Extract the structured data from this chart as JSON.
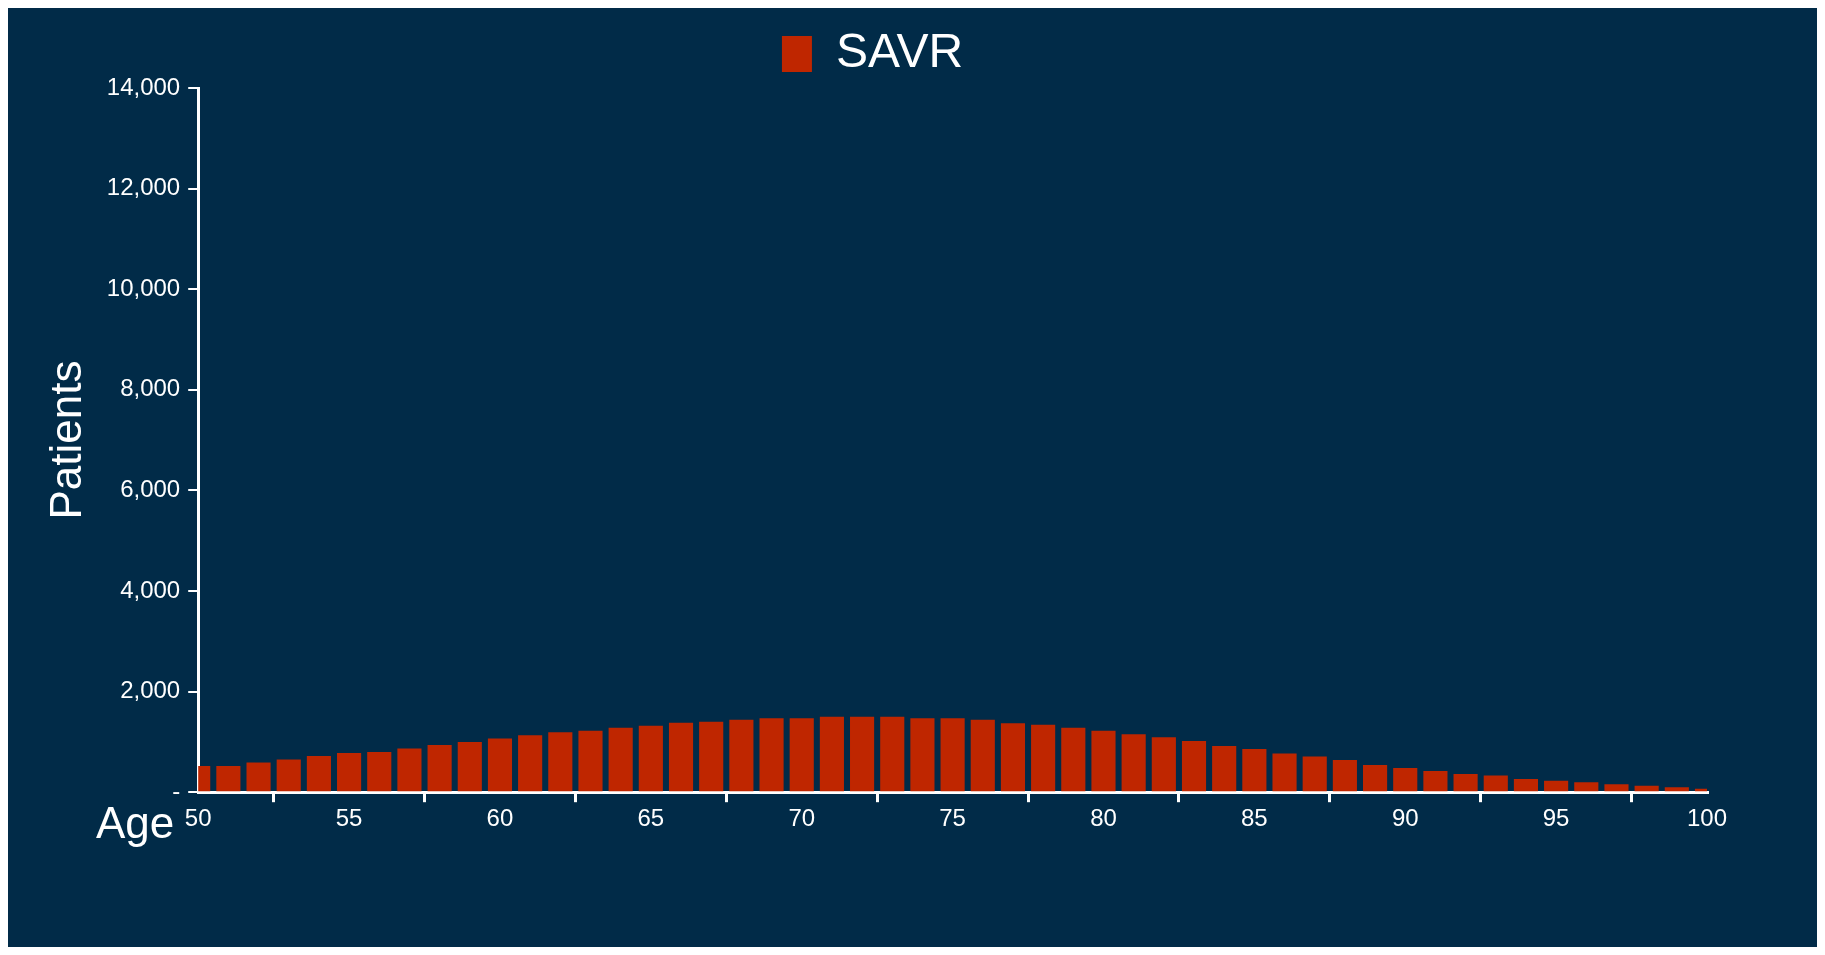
{
  "chart_data": {
    "type": "bar",
    "xlabel": "Age",
    "ylabel": "Patients",
    "x": [
      50,
      51,
      52,
      53,
      54,
      55,
      56,
      57,
      58,
      59,
      60,
      61,
      62,
      63,
      64,
      65,
      66,
      67,
      68,
      69,
      70,
      71,
      72,
      73,
      74,
      75,
      76,
      77,
      78,
      79,
      80,
      81,
      82,
      83,
      84,
      85,
      86,
      87,
      88,
      89,
      90,
      91,
      92,
      93,
      94,
      95,
      96,
      97,
      98,
      99,
      100
    ],
    "series": [
      {
        "name": "SAVR",
        "color": "#bf2600",
        "values": [
          520,
          520,
          590,
          650,
          720,
          780,
          800,
          870,
          940,
          1000,
          1070,
          1130,
          1190,
          1220,
          1280,
          1320,
          1380,
          1400,
          1440,
          1470,
          1470,
          1500,
          1500,
          1500,
          1470,
          1470,
          1440,
          1370,
          1340,
          1280,
          1220,
          1150,
          1090,
          1020,
          920,
          860,
          770,
          710,
          640,
          540,
          480,
          420,
          360,
          330,
          260,
          230,
          200,
          160,
          130,
          100,
          70
        ]
      }
    ],
    "xlim": [
      50,
      100
    ],
    "xticks": [
      50,
      55,
      60,
      65,
      70,
      75,
      80,
      85,
      90,
      95,
      100
    ],
    "ylim": [
      0,
      14000
    ],
    "yticks": [
      {
        "value": 0,
        "label": "-"
      },
      {
        "value": 2000,
        "label": "2,000"
      },
      {
        "value": 4000,
        "label": "4,000"
      },
      {
        "value": 6000,
        "label": "6,000"
      },
      {
        "value": 8000,
        "label": "8,000"
      },
      {
        "value": 10000,
        "label": "10,000"
      },
      {
        "value": 12000,
        "label": "12,000"
      },
      {
        "value": 14000,
        "label": "14,000"
      }
    ],
    "legend": "top",
    "grid": false
  }
}
